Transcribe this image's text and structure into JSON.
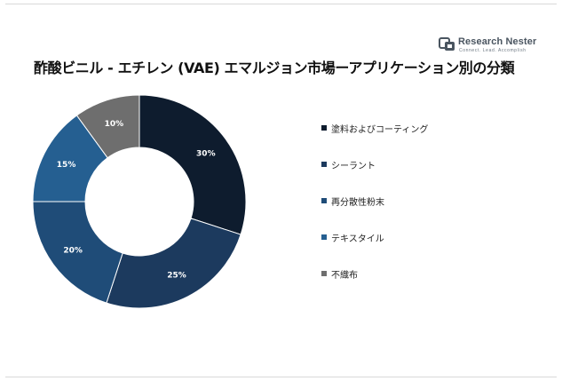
{
  "header": {
    "title": "酢酸ビニル - エチレン (VAE) エマルジョン市場ーアプリケーション別の分類"
  },
  "logo": {
    "name": "Research Nester",
    "tagline": "Connect. Lead. Accomplish"
  },
  "chart_data": {
    "type": "pie",
    "donut": true,
    "title": "酢酸ビニル - エチレン (VAE) エマルジョン市場ーアプリケーション別の分類",
    "legend_position": "right",
    "categories": [
      "塗料およびコーティング",
      "シーラント",
      "再分散性粉末",
      "テキスタイル",
      "不織布"
    ],
    "values": [
      30,
      25,
      20,
      15,
      10
    ],
    "labels": [
      "30%",
      "25%",
      "20%",
      "15%",
      "10%"
    ],
    "colors": [
      "#0e1c2e",
      "#1c3a5e",
      "#1f4c78",
      "#255f91",
      "#6e6e6e"
    ]
  }
}
